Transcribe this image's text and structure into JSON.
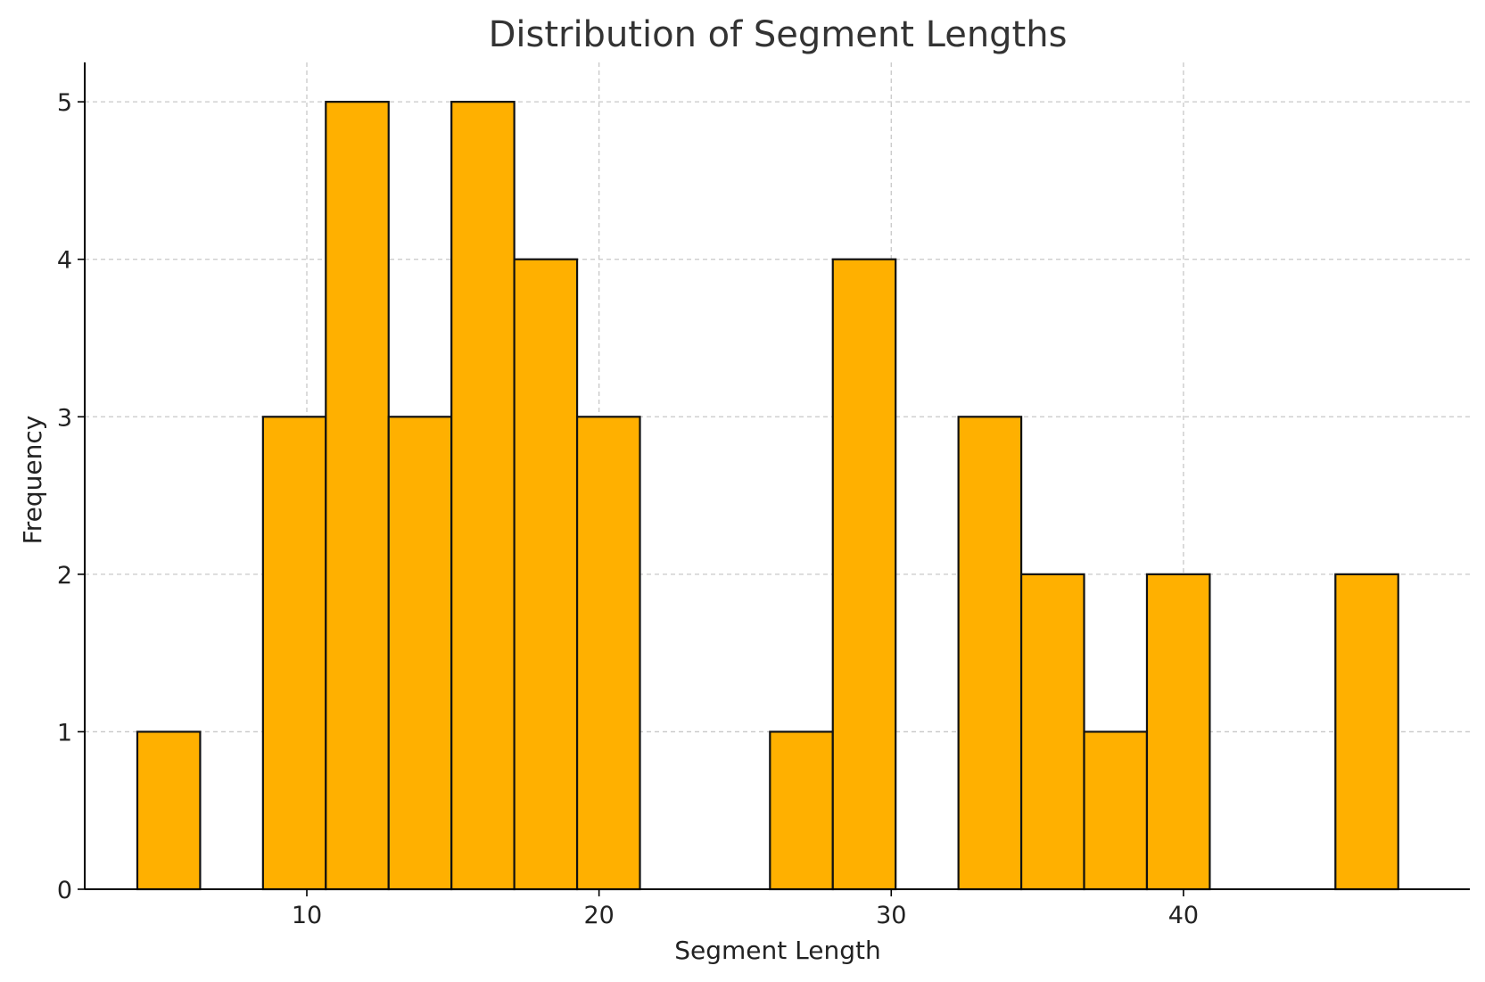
{
  "chart_data": {
    "type": "bar",
    "title": "Distribution of Segment Lengths",
    "xlabel": "Segment Length",
    "ylabel": "Frequency",
    "xlim": [
      2.4,
      49.8
    ],
    "ylim": [
      0,
      5.25
    ],
    "xticks": [
      10,
      20,
      30,
      40
    ],
    "yticks": [
      0,
      1,
      2,
      3,
      4,
      5
    ],
    "grid": true,
    "bar_color": "#FFB000",
    "edge_color": "#111111",
    "bins": [
      {
        "x0": 4.2,
        "x1": 6.35,
        "count": 1
      },
      {
        "x0": 8.5,
        "x1": 10.65,
        "count": 3
      },
      {
        "x0": 10.65,
        "x1": 12.8,
        "count": 5
      },
      {
        "x0": 12.8,
        "x1": 14.95,
        "count": 3
      },
      {
        "x0": 14.95,
        "x1": 17.1,
        "count": 5
      },
      {
        "x0": 17.1,
        "x1": 19.25,
        "count": 4
      },
      {
        "x0": 19.25,
        "x1": 21.4,
        "count": 3
      },
      {
        "x0": 25.85,
        "x1": 28.0,
        "count": 1
      },
      {
        "x0": 28.0,
        "x1": 30.15,
        "count": 4
      },
      {
        "x0": 32.3,
        "x1": 34.45,
        "count": 3
      },
      {
        "x0": 34.45,
        "x1": 36.6,
        "count": 2
      },
      {
        "x0": 36.6,
        "x1": 38.75,
        "count": 1
      },
      {
        "x0": 38.75,
        "x1": 40.9,
        "count": 2
      },
      {
        "x0": 45.2,
        "x1": 47.35,
        "count": 2
      }
    ]
  }
}
